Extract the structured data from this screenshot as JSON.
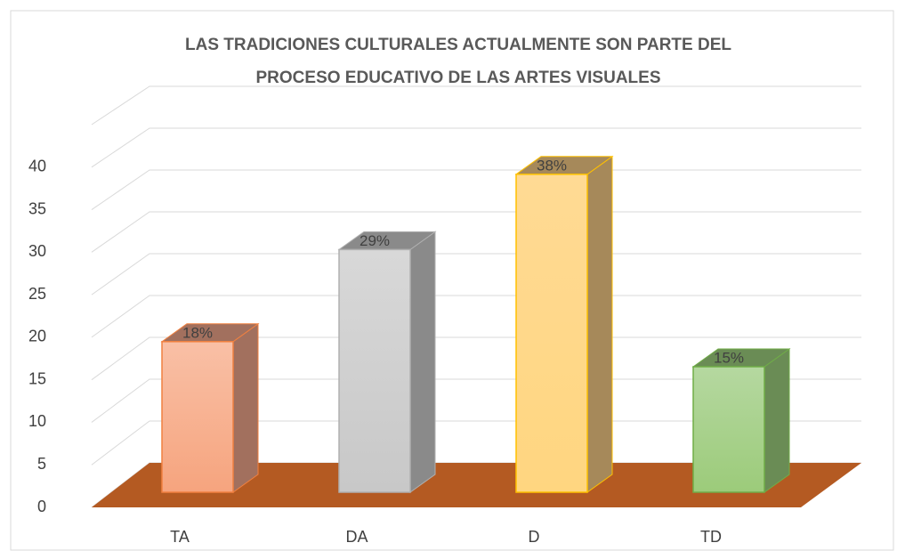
{
  "chart_data": {
    "type": "bar3d",
    "title": [
      "LAS  TRADICIONES  CULTURALES  ACTUALMENTE  SON PARTE  DEL",
      "PROCESO EDUCATIVO DE  LAS ARTES  VISUALES"
    ],
    "categories": [
      "TA",
      "DA",
      "D",
      "TD"
    ],
    "values": [
      18,
      29,
      38,
      15
    ],
    "value_labels": [
      "18%",
      "29%",
      "38%",
      "15%"
    ],
    "colors": [
      "#f8b193",
      "#cfcfcf",
      "#ffd98c",
      "#a9d18e"
    ],
    "ylim": [
      0,
      45
    ],
    "yticks": [
      0,
      5,
      10,
      15,
      20,
      25,
      30,
      35,
      40
    ],
    "grid": true
  }
}
